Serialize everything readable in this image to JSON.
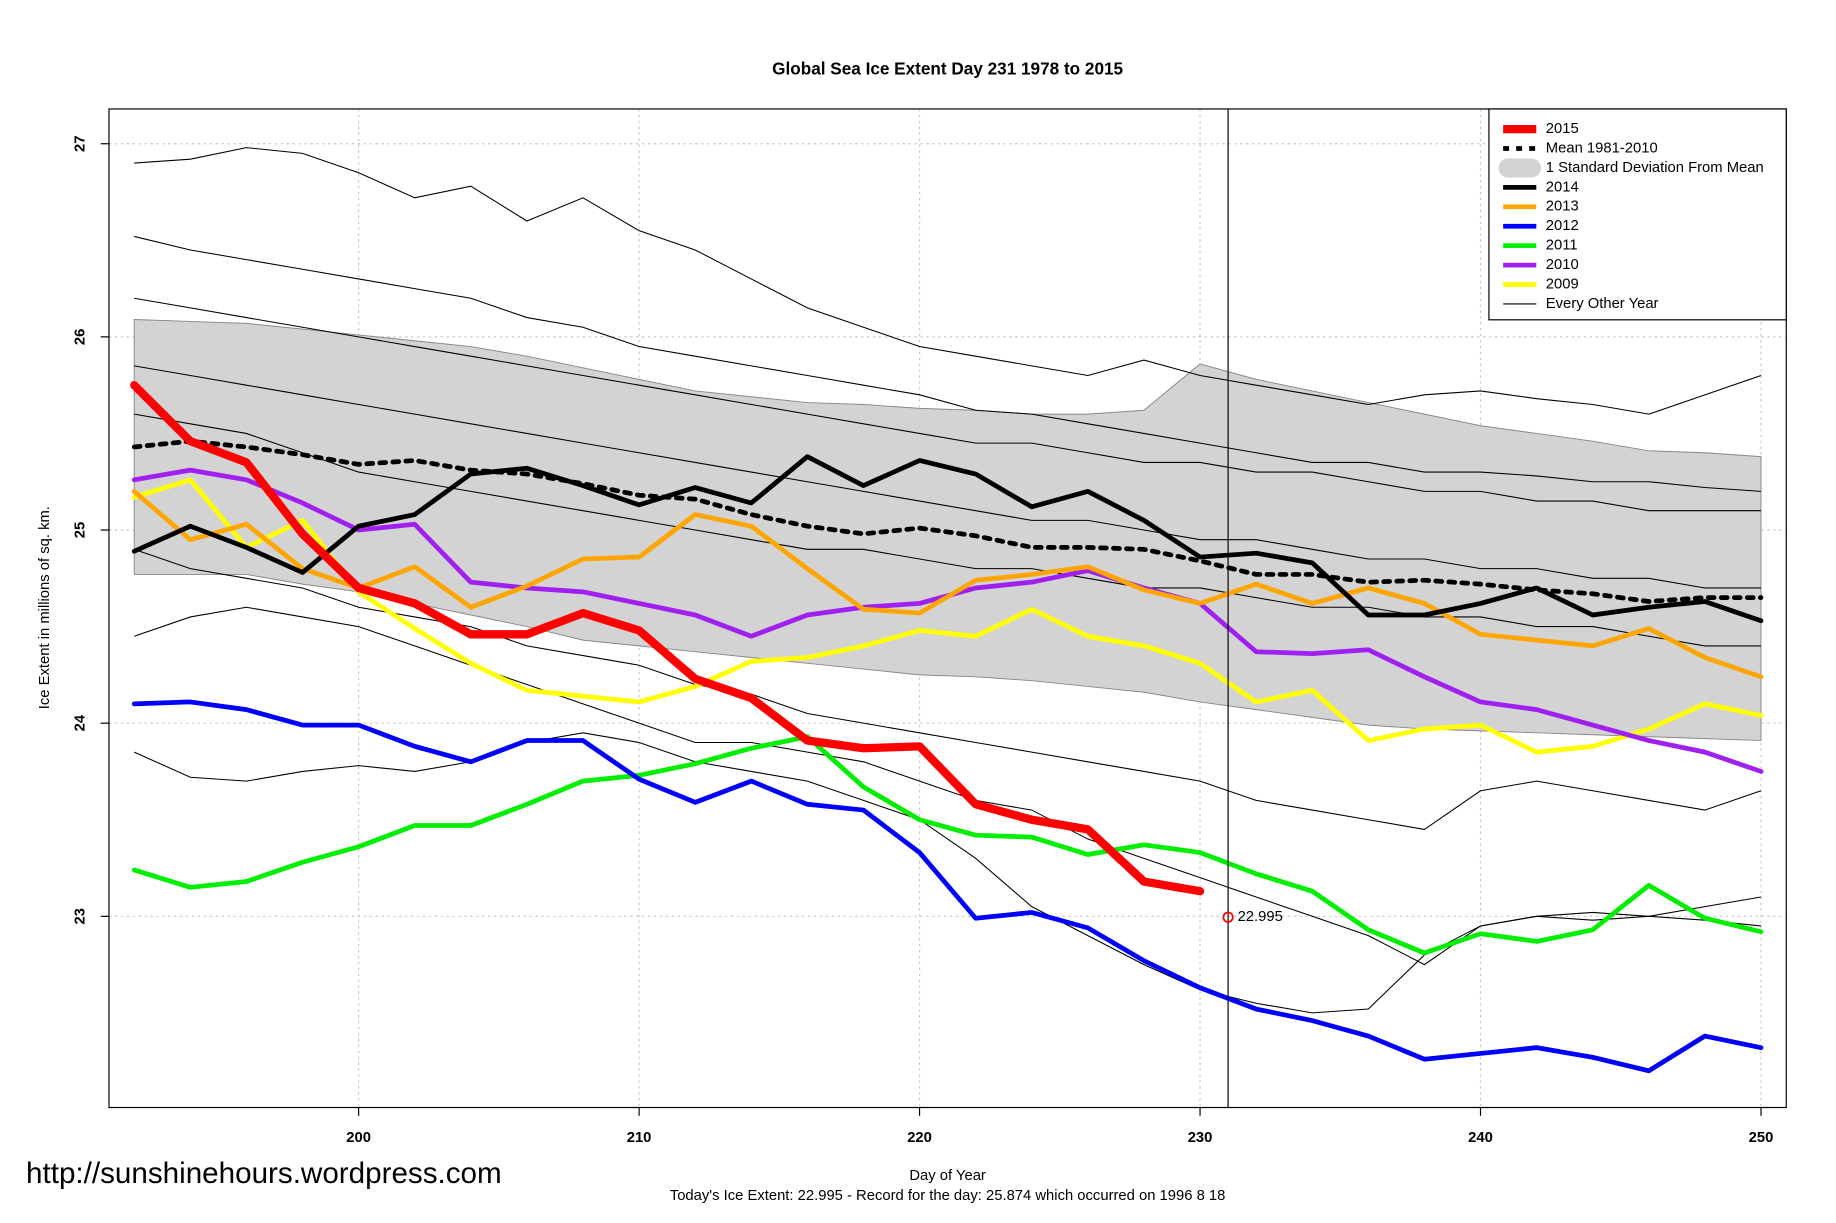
{
  "chart_data": {
    "type": "line",
    "title": "Global Sea Ice Extent Day 231 1978 to 2015",
    "xlabel": "Day of Year",
    "ylabel": "Ice Extent in millions of sq. km.",
    "caption": "Today's Ice Extent: 22.995  - Record for the day: 25.874 which occurred on 1996 8 18",
    "watermark": "http://sunshinehours.wordpress.com",
    "xlim": [
      191.1,
      250.9
    ],
    "ylim": [
      22.01,
      27.18
    ],
    "xticks": [
      200,
      210,
      220,
      230,
      240,
      250
    ],
    "yticks": [
      23,
      24,
      25,
      26,
      27
    ],
    "grid": true,
    "legend": "topright",
    "marker_x": 231,
    "annotation": {
      "x": 231,
      "y": 22.995,
      "label": "22.995",
      "color": "#ff0000"
    },
    "x": [
      192,
      194,
      196,
      198,
      200,
      202,
      204,
      206,
      208,
      210,
      212,
      214,
      216,
      218,
      220,
      222,
      224,
      226,
      228,
      230,
      232,
      234,
      236,
      238,
      240,
      242,
      244,
      246,
      248,
      250
    ],
    "band": {
      "name": "1 Standard Deviation From Mean",
      "color": "#d3d3d3",
      "upper": [
        26.09,
        26.08,
        26.07,
        26.04,
        26.01,
        25.98,
        25.95,
        25.9,
        25.84,
        25.78,
        25.72,
        25.69,
        25.66,
        25.65,
        25.63,
        25.62,
        25.6,
        25.6,
        25.62,
        25.86,
        25.78,
        25.72,
        25.66,
        25.6,
        25.54,
        25.5,
        25.46,
        25.41,
        25.4,
        25.38
      ],
      "lower": [
        24.77,
        24.77,
        24.77,
        24.72,
        24.68,
        24.62,
        24.56,
        24.5,
        24.43,
        24.4,
        24.37,
        24.34,
        24.31,
        24.28,
        24.25,
        24.24,
        24.22,
        24.19,
        24.16,
        24.11,
        24.07,
        24.03,
        23.99,
        23.97,
        23.96,
        23.95,
        23.94,
        23.93,
        23.92,
        23.91
      ]
    },
    "series": [
      {
        "name": "2015",
        "color": "#ff0000",
        "width": 7,
        "dash": false,
        "values": [
          25.75,
          25.46,
          25.35,
          24.98,
          24.7,
          24.62,
          24.46,
          24.46,
          24.57,
          24.48,
          24.23,
          24.13,
          23.91,
          23.87,
          23.88,
          23.58,
          23.5,
          23.45,
          23.18,
          23.13,
          null,
          null,
          null,
          null,
          null,
          null,
          null,
          null,
          null,
          null
        ]
      },
      {
        "name": "Mean 1981-2010",
        "color": "#000000",
        "width": 4,
        "dash": true,
        "values": [
          25.43,
          25.46,
          25.43,
          25.39,
          25.34,
          25.36,
          25.31,
          25.29,
          25.24,
          25.18,
          25.16,
          25.08,
          25.02,
          24.98,
          25.01,
          24.97,
          24.91,
          24.91,
          24.9,
          24.84,
          24.77,
          24.77,
          24.73,
          24.74,
          24.72,
          24.69,
          24.67,
          24.63,
          24.65,
          24.65
        ]
      },
      {
        "name": "2014",
        "color": "#000000",
        "width": 4,
        "dash": false,
        "values": [
          24.89,
          25.02,
          24.91,
          24.78,
          25.02,
          25.08,
          25.29,
          25.32,
          25.23,
          25.13,
          25.22,
          25.14,
          25.38,
          25.23,
          25.36,
          25.29,
          25.12,
          25.2,
          25.05,
          24.86,
          24.88,
          24.83,
          24.56,
          24.56,
          24.62,
          24.7,
          24.56,
          24.6,
          24.63,
          24.53
        ]
      },
      {
        "name": "2013",
        "color": "#ffa500",
        "width": 4,
        "dash": false,
        "values": [
          25.2,
          24.95,
          25.03,
          24.8,
          24.7,
          24.81,
          24.6,
          24.71,
          24.85,
          24.86,
          25.08,
          25.02,
          24.8,
          24.59,
          24.57,
          24.74,
          24.77,
          24.81,
          24.69,
          24.62,
          24.72,
          24.62,
          24.7,
          24.62,
          24.46,
          24.43,
          24.4,
          24.49,
          24.34,
          24.24
        ]
      },
      {
        "name": "2012",
        "color": "#0000ff",
        "width": 4,
        "dash": false,
        "values": [
          24.1,
          24.11,
          24.07,
          23.99,
          23.99,
          23.88,
          23.8,
          23.91,
          23.91,
          23.71,
          23.59,
          23.7,
          23.58,
          23.55,
          23.33,
          22.99,
          23.02,
          22.94,
          22.77,
          22.63,
          22.52,
          22.46,
          22.38,
          22.26,
          22.29,
          22.32,
          22.27,
          22.2,
          22.38,
          22.32
        ]
      },
      {
        "name": "2011",
        "color": "#00ee00",
        "width": 4,
        "dash": false,
        "values": [
          23.24,
          23.15,
          23.18,
          23.28,
          23.36,
          23.47,
          23.47,
          23.58,
          23.7,
          23.73,
          23.79,
          23.87,
          23.93,
          23.67,
          23.5,
          23.42,
          23.41,
          23.32,
          23.37,
          23.33,
          23.22,
          23.13,
          22.93,
          22.81,
          22.91,
          22.87,
          22.93,
          23.16,
          22.99,
          22.92
        ]
      },
      {
        "name": "2010",
        "color": "#a020f0",
        "width": 4,
        "dash": false,
        "values": [
          25.26,
          25.31,
          25.26,
          25.14,
          25.0,
          25.03,
          24.73,
          24.7,
          24.68,
          24.62,
          24.56,
          24.45,
          24.56,
          24.6,
          24.62,
          24.7,
          24.73,
          24.79,
          24.7,
          24.62,
          24.37,
          24.36,
          24.38,
          24.24,
          24.11,
          24.07,
          23.99,
          23.91,
          23.85,
          23.75
        ]
      },
      {
        "name": "2009",
        "color": "#ffff00",
        "width": 4,
        "dash": false,
        "values": [
          25.17,
          25.26,
          24.91,
          25.05,
          24.68,
          24.49,
          24.31,
          24.17,
          24.14,
          24.11,
          24.19,
          24.32,
          24.34,
          24.4,
          24.48,
          24.45,
          24.59,
          24.45,
          24.4,
          24.31,
          24.11,
          24.17,
          23.91,
          23.97,
          23.99,
          23.85,
          23.88,
          23.97,
          24.1,
          24.04
        ]
      }
    ],
    "other_years": {
      "name": "Every Other Year",
      "color": "#000000",
      "lines": [
        [
          26.9,
          26.92,
          26.98,
          26.95,
          26.85,
          26.72,
          26.78,
          26.6,
          26.72,
          26.55,
          26.45,
          26.3,
          26.15,
          26.05,
          25.95,
          25.9,
          25.85,
          25.8,
          25.88,
          25.8,
          25.75,
          25.7,
          25.65,
          25.7,
          25.72,
          25.68,
          25.65,
          25.6,
          25.7,
          25.8
        ],
        [
          26.52,
          26.45,
          26.4,
          26.35,
          26.3,
          26.25,
          26.2,
          26.1,
          26.05,
          25.95,
          25.9,
          25.85,
          25.8,
          25.75,
          25.7,
          25.62,
          25.6,
          25.55,
          25.5,
          25.45,
          25.4,
          25.35,
          25.35,
          25.3,
          25.3,
          25.28,
          25.25,
          25.25,
          25.22,
          25.2
        ],
        [
          26.2,
          26.15,
          26.1,
          26.05,
          26.0,
          25.95,
          25.9,
          25.85,
          25.8,
          25.75,
          25.7,
          25.65,
          25.6,
          25.55,
          25.5,
          25.45,
          25.45,
          25.4,
          25.35,
          25.35,
          25.3,
          25.3,
          25.25,
          25.2,
          25.2,
          25.15,
          25.15,
          25.1,
          25.1,
          25.1
        ],
        [
          25.85,
          25.8,
          25.75,
          25.7,
          25.65,
          25.6,
          25.55,
          25.5,
          25.45,
          25.4,
          25.35,
          25.3,
          25.25,
          25.2,
          25.15,
          25.1,
          25.05,
          25.05,
          25.0,
          24.95,
          24.95,
          24.9,
          24.85,
          24.85,
          24.8,
          24.8,
          24.75,
          24.75,
          24.7,
          24.7
        ],
        [
          25.6,
          25.55,
          25.5,
          25.4,
          25.3,
          25.25,
          25.2,
          25.15,
          25.1,
          25.05,
          25.0,
          24.95,
          24.9,
          24.9,
          24.85,
          24.8,
          24.8,
          24.75,
          24.7,
          24.7,
          24.65,
          24.6,
          24.6,
          24.55,
          24.55,
          24.5,
          24.5,
          24.45,
          24.4,
          24.4
        ],
        [
          24.9,
          24.8,
          24.75,
          24.7,
          24.6,
          24.55,
          24.5,
          24.4,
          24.35,
          24.3,
          24.2,
          24.15,
          24.05,
          24.0,
          23.95,
          23.9,
          23.85,
          23.8,
          23.75,
          23.7,
          23.6,
          23.55,
          23.5,
          23.45,
          23.65,
          23.7,
          23.65,
          23.6,
          23.55,
          23.65
        ],
        [
          24.45,
          24.55,
          24.6,
          24.55,
          24.5,
          24.4,
          24.3,
          24.2,
          24.1,
          24.0,
          23.9,
          23.9,
          23.85,
          23.8,
          23.7,
          23.6,
          23.55,
          23.4,
          23.3,
          23.2,
          23.1,
          23.0,
          22.9,
          22.75,
          22.95,
          23.0,
          22.98,
          23.0,
          22.98,
          22.95
        ],
        [
          23.85,
          23.72,
          23.7,
          23.75,
          23.78,
          23.75,
          23.8,
          23.9,
          23.95,
          23.9,
          23.8,
          23.75,
          23.7,
          23.6,
          23.5,
          23.3,
          23.05,
          22.9,
          22.75,
          22.62,
          22.55,
          22.5,
          22.52,
          22.8,
          22.95,
          23.0,
          23.02,
          23.0,
          23.05,
          23.1
        ]
      ]
    }
  }
}
